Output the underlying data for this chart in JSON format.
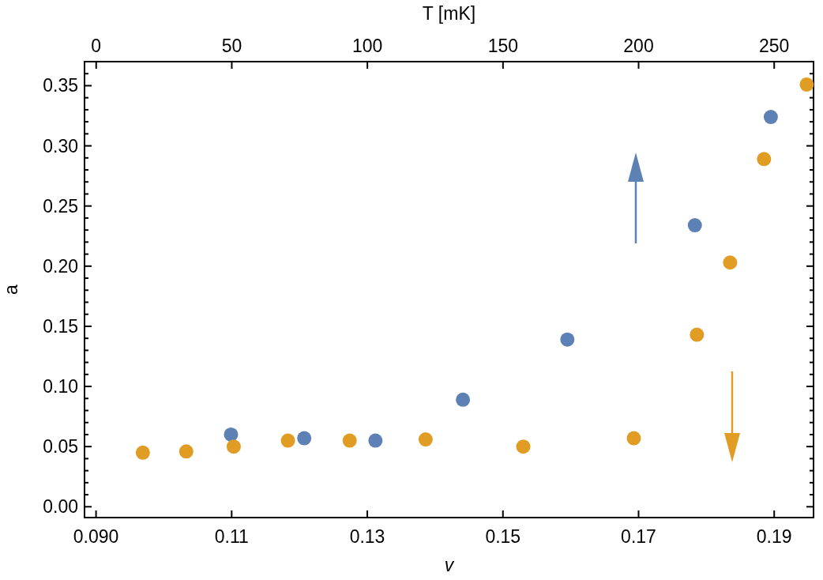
{
  "chart_data": {
    "type": "scatter",
    "xlabel": "v",
    "ylabel": "a",
    "x2label": "T [mK]",
    "xlim": [
      0.0883,
      0.1958
    ],
    "xticks": [
      {
        "value": 0.09,
        "label": "0.090"
      },
      0.11,
      0.13,
      0.15,
      0.17,
      0.19
    ],
    "x2lim": [
      -4.3,
      264.5
    ],
    "x2ticks": [
      0,
      50,
      100,
      150,
      200,
      250
    ],
    "ylim": [
      -0.009,
      0.37
    ],
    "yticks": [
      {
        "value": 0,
        "label": "0.00"
      },
      {
        "value": 0.01,
        "label": null
      },
      {
        "value": 0.02,
        "label": null
      },
      {
        "value": 0.03,
        "label": null
      },
      {
        "value": 0.04,
        "label": null
      },
      {
        "value": 0.05,
        "label": "0.05"
      },
      {
        "value": 0.06,
        "label": null
      },
      {
        "value": 0.07,
        "label": null
      },
      {
        "value": 0.08,
        "label": null
      },
      {
        "value": 0.09,
        "label": null
      },
      {
        "value": 0.1,
        "label": "0.10"
      },
      {
        "value": 0.11,
        "label": null
      },
      {
        "value": 0.12,
        "label": null
      },
      {
        "value": 0.13,
        "label": null
      },
      {
        "value": 0.14,
        "label": null
      },
      {
        "value": 0.15,
        "label": "0.15"
      },
      {
        "value": 0.16,
        "label": null
      },
      {
        "value": 0.17,
        "label": null
      },
      {
        "value": 0.18,
        "label": null
      },
      {
        "value": 0.19,
        "label": null
      },
      {
        "value": 0.2,
        "label": "0.20"
      },
      {
        "value": 0.21,
        "label": null
      },
      {
        "value": 0.22,
        "label": null
      },
      {
        "value": 0.23,
        "label": null
      },
      {
        "value": 0.24,
        "label": null
      },
      {
        "value": 0.25,
        "label": "0.25"
      },
      {
        "value": 0.26,
        "label": null
      },
      {
        "value": 0.27,
        "label": null
      },
      {
        "value": 0.28,
        "label": null
      },
      {
        "value": 0.29,
        "label": null
      },
      {
        "value": 0.3,
        "label": "0.30"
      },
      {
        "value": 0.31,
        "label": null
      },
      {
        "value": 0.32,
        "label": null
      },
      {
        "value": 0.33,
        "label": null
      },
      {
        "value": 0.34,
        "label": null
      },
      {
        "value": 0.35,
        "label": "0.35"
      },
      {
        "value": 0.36,
        "label": null
      }
    ],
    "grid": false,
    "marker": "circle",
    "series": [
      {
        "color": "#5e81b5",
        "x": [
          0.1099,
          0.1207,
          0.1312,
          0.1441,
          0.1595,
          0.1783,
          0.1895
        ],
        "values": [
          0.06,
          0.057,
          0.055,
          0.089,
          0.139,
          0.234,
          0.324
        ]
      },
      {
        "color": "#e19c24",
        "x": [
          0.0969,
          0.1033,
          0.1103,
          0.1183,
          0.1274,
          0.1386,
          0.153,
          0.1693,
          0.1786,
          0.1835,
          0.1885,
          0.1948
        ],
        "values": [
          0.045,
          0.046,
          0.05,
          0.055,
          0.055,
          0.056,
          0.05,
          0.057,
          0.143,
          0.203,
          0.289,
          0.351
        ]
      }
    ]
  }
}
